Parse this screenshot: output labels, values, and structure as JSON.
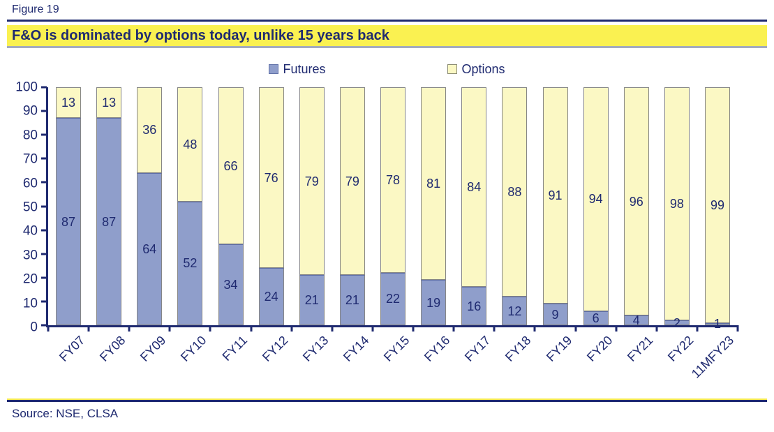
{
  "figure_label": "Figure 19",
  "title": "F&O is dominated by options today, unlike 15 years back",
  "source": "Source: NSE, CLSA",
  "colors": {
    "navy": "#1F2A70",
    "bar_blue": "#8F9ECB",
    "bar_yellow": "#FBF8C4",
    "title_bg": "#FAF151",
    "title_shadow": "#A3ABBE",
    "bar_border": "#868686"
  },
  "chart_data": {
    "type": "bar",
    "stacked": true,
    "title": "F&O is dominated by options today, unlike 15 years back",
    "categories": [
      "FY07",
      "FY08",
      "FY09",
      "FY10",
      "FY11",
      "FY12",
      "FY13",
      "FY14",
      "FY15",
      "FY16",
      "FY17",
      "FY18",
      "FY19",
      "FY20",
      "FY21",
      "FY22",
      "11MFY23"
    ],
    "series": [
      {
        "name": "Futures",
        "color": "#8F9ECB",
        "values": [
          87,
          87,
          64,
          52,
          34,
          24,
          21,
          21,
          22,
          19,
          16,
          12,
          9,
          6,
          4,
          2,
          1
        ]
      },
      {
        "name": "Options",
        "color": "#FBF8C4",
        "values": [
          13,
          13,
          36,
          48,
          66,
          76,
          79,
          79,
          78,
          81,
          84,
          88,
          91,
          94,
          96,
          98,
          99
        ]
      }
    ],
    "xlabel": "",
    "ylabel": "",
    "ylim": [
      0,
      100
    ],
    "yticks": [
      0,
      10,
      20,
      30,
      40,
      50,
      60,
      70,
      80,
      90,
      100
    ],
    "grid": false,
    "legend_position": "top",
    "bar_labels": true
  }
}
